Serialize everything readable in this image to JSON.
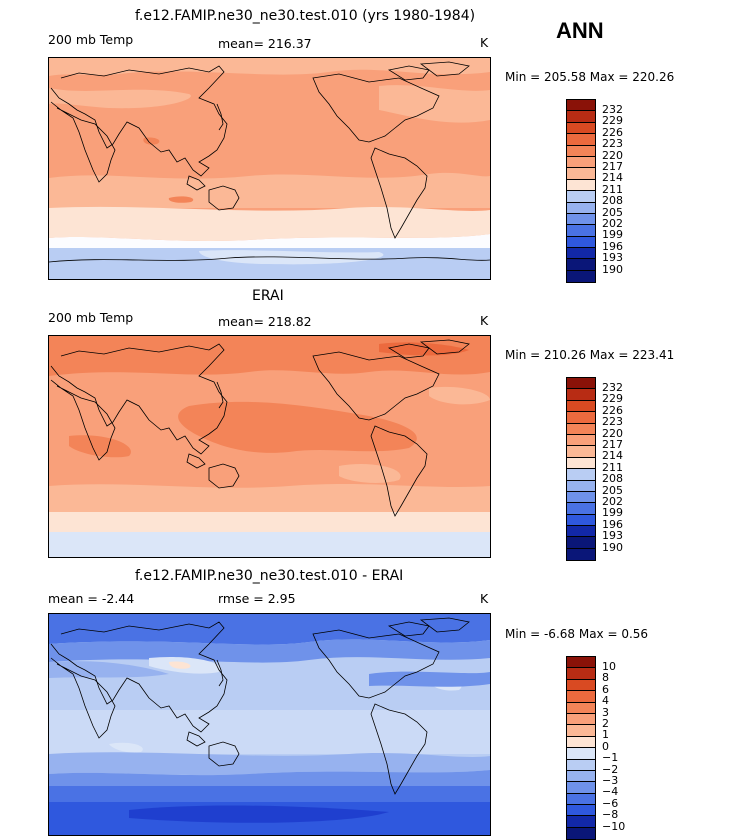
{
  "season": "ANN",
  "colors": {
    "warm": [
      "#fde4d4",
      "#fcd0b8",
      "#fbb896",
      "#f9a07a",
      "#f38458",
      "#ec6a3e",
      "#d94a22",
      "#b82c14",
      "#8a1208"
    ],
    "neutral": "#fcfcff",
    "cool": [
      "#dbe6f8",
      "#b9cdf3",
      "#97b2ef",
      "#6f92ea",
      "#4a72e4",
      "#2f58de",
      "#1f3fcf",
      "#1228a8",
      "#0a1678"
    ]
  },
  "panels": [
    {
      "title": "f.e12.FAMIP.ne30_ne30.test.010 (yrs 1980-1984)",
      "left": "200 mb Temp",
      "center": "mean= 216.37",
      "unit": "K",
      "minmax": "Min = 205.58 Max = 220.26",
      "levels": [
        "232",
        "229",
        "226",
        "223",
        "220",
        "217",
        "214",
        "211",
        "208",
        "205",
        "202",
        "199",
        "196",
        "193",
        "190"
      ],
      "swatches": [
        "#8a1208",
        "#b82c14",
        "#d94a22",
        "#ec6a3e",
        "#f38458",
        "#f9a07a",
        "#fbb896",
        "#fde4d4",
        "#b9cdf3",
        "#97b2ef",
        "#6f92ea",
        "#4a72e4",
        "#2f58de",
        "#1228a8",
        "#0a1678",
        "#0a1678"
      ]
    },
    {
      "title": "ERAI",
      "left": "200 mb Temp",
      "center": "mean= 218.82",
      "unit": "K",
      "minmax": "Min = 210.26 Max = 223.41",
      "levels": [
        "232",
        "229",
        "226",
        "223",
        "220",
        "217",
        "214",
        "211",
        "208",
        "205",
        "202",
        "199",
        "196",
        "193",
        "190"
      ],
      "swatches": [
        "#8a1208",
        "#b82c14",
        "#d94a22",
        "#ec6a3e",
        "#f38458",
        "#f9a07a",
        "#fbb896",
        "#fde4d4",
        "#b9cdf3",
        "#97b2ef",
        "#6f92ea",
        "#4a72e4",
        "#2f58de",
        "#1228a8",
        "#0a1678",
        "#0a1678"
      ]
    },
    {
      "title": "f.e12.FAMIP.ne30_ne30.test.010 - ERAI",
      "left": "mean =   -2.44",
      "center": "rmse =    2.95",
      "unit": "K",
      "minmax": "Min =   -6.68 Max =    0.56",
      "levels": [
        "10",
        "8",
        "6",
        "4",
        "3",
        "2",
        "1",
        "0",
        "-1",
        "-2",
        "-3",
        "-4",
        "-6",
        "-8",
        "-10"
      ],
      "swatches": [
        "#8a1208",
        "#b82c14",
        "#d94a22",
        "#ec6a3e",
        "#f38458",
        "#f9a07a",
        "#fbb896",
        "#fde4d4",
        "#dbe6f8",
        "#b9cdf3",
        "#97b2ef",
        "#6f92ea",
        "#4a72e4",
        "#2f58de",
        "#1228a8",
        "#0a1678"
      ]
    }
  ]
}
